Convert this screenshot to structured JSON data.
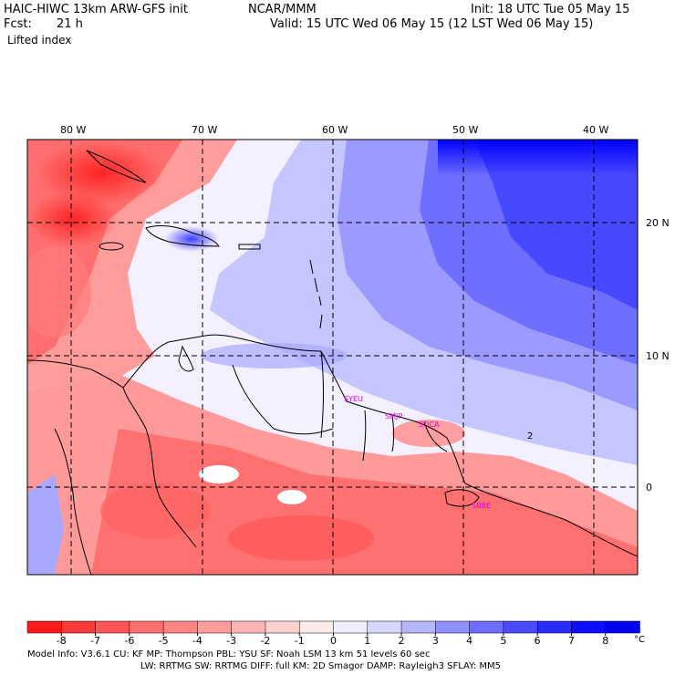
{
  "header": {
    "model_title": "HAIC-HIWC 13km ARW-GFS init",
    "org": "NCAR/MMM",
    "init": "Init: 18 UTC Tue 05 May 15",
    "fcst_label": "Fcst:",
    "fcst_value": "21 h",
    "valid": "Valid: 15 UTC Wed 06 May 15 (12 LST Wed 06 May 15)",
    "field": "Lifted index"
  },
  "map": {
    "lon_labels": [
      "80 W",
      "70 W",
      "60 W",
      "50 W",
      "40 W"
    ],
    "lat_labels": [
      "20 N",
      "10 N",
      "0"
    ],
    "station_labels": [
      "SYEU",
      "SMJP",
      "SOCA",
      "SBBE"
    ],
    "contour_label": "2"
  },
  "colors": {
    "negative_max": "#ff1a1a",
    "neutral": "#ffffff",
    "positive_max": "#0000ff",
    "station_label": "#e000e0"
  },
  "legend": {
    "ticks": [
      "-8",
      "-7",
      "-6",
      "-5",
      "-4",
      "-3",
      "-2",
      "-1",
      "0",
      "1",
      "2",
      "3",
      "4",
      "5",
      "6",
      "7",
      "8"
    ],
    "unit": "°C",
    "colors": [
      "#ff1a1a",
      "#ff3a3a",
      "#ff5555",
      "#ff6e6e",
      "#ff8585",
      "#ff9c9c",
      "#ffb5b5",
      "#ffd0d0",
      "#ffeaea",
      "#eeeeff",
      "#d6d6ff",
      "#b6b6ff",
      "#9090ff",
      "#6c6cff",
      "#4a4aff",
      "#2a2aff",
      "#0e0eff",
      "#0000f0"
    ]
  },
  "footer": {
    "line1": "Model Info: V3.6.1     CU: KF      MP: Thompson      PBL: YSU      SF: Noah LSM     13 km    51 levels    60 sec",
    "line2": "LW: RRTMG     SW: RRTMG   DIFF: full    KM: 2D Smagor DAMP: Rayleigh3    SFLAY: MM5"
  }
}
